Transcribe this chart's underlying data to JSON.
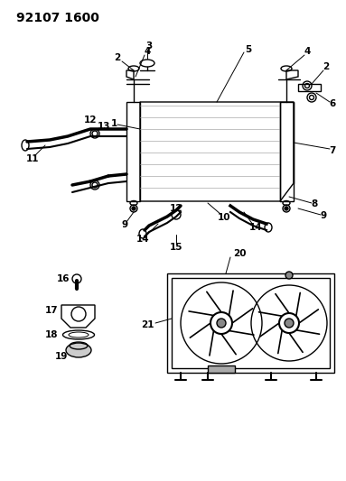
{
  "title": "92107 1600",
  "bg_color": "#ffffff",
  "line_color": "#000000",
  "title_fontsize": 10,
  "label_fontsize": 7.5,
  "fig_width": 3.83,
  "fig_height": 5.33,
  "dpi": 100
}
